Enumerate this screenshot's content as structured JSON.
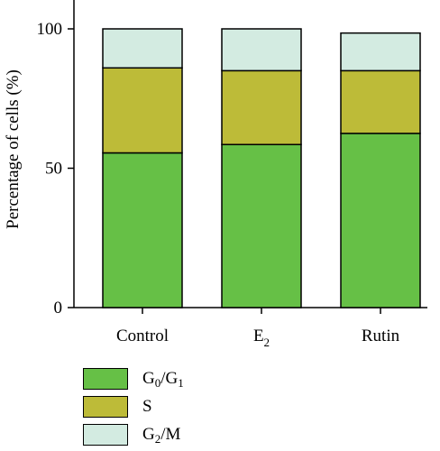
{
  "chart_data": {
    "type": "bar",
    "stacked": true,
    "categories": [
      "Control",
      "E2",
      "Rutin"
    ],
    "series": [
      {
        "name": "G0/G1",
        "values": [
          55.5,
          58.5,
          62.5
        ],
        "color": "#66c046"
      },
      {
        "name": "S",
        "values": [
          30.5,
          26.5,
          22.5
        ],
        "color": "#bdbb38"
      },
      {
        "name": "G2/M",
        "values": [
          14.0,
          15.0,
          13.5
        ],
        "color": "#d3ebe1"
      }
    ],
    "ylabel": "Percentage of cells (%)",
    "ylim": [
      0,
      110
    ],
    "yticks": [
      0,
      50,
      100
    ],
    "legend_position": "bottom-left",
    "grid": false
  }
}
